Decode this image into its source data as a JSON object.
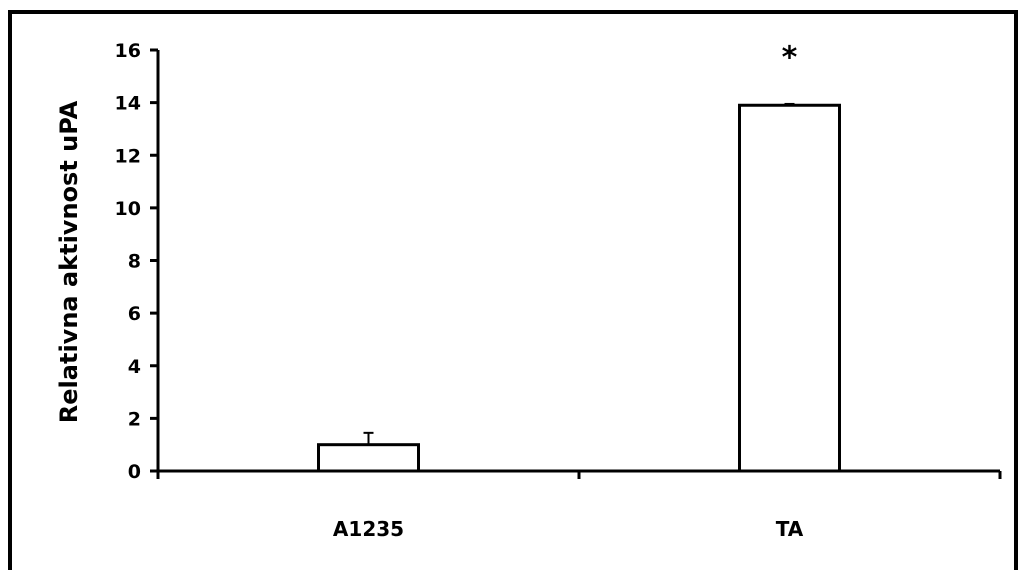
{
  "chart_data": {
    "type": "bar",
    "categories": [
      "A1235",
      "TA"
    ],
    "values": [
      1.0,
      13.9
    ],
    "error_bars": [
      0.45,
      0.05
    ],
    "annotations": [
      "",
      "*"
    ],
    "title": "",
    "xlabel": "",
    "ylabel": "Relativna aktivnost uPA",
    "ylim": [
      0,
      16
    ],
    "yticks": [
      0,
      2,
      4,
      6,
      8,
      10,
      12,
      14,
      16
    ],
    "grid": false,
    "legend": "none",
    "bar_fill": "#ffffff",
    "bar_stroke": "#000000"
  }
}
